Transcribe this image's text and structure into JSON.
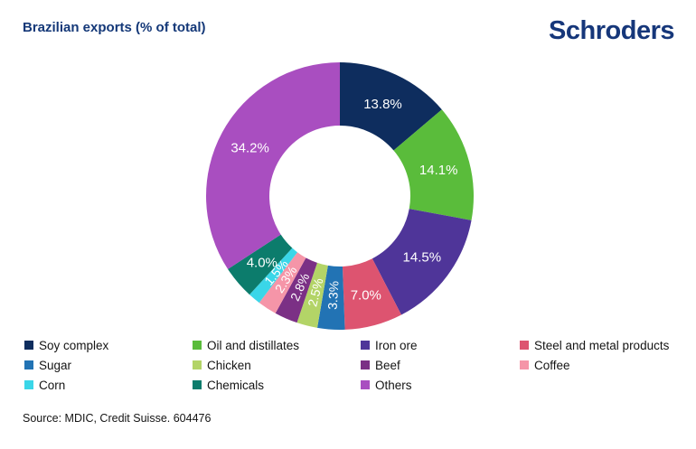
{
  "header": {
    "title": "Brazilian exports (% of total)",
    "logo_text": "Schroders"
  },
  "colors": {
    "title_navy": "#143878",
    "logo_navy": "#16377a",
    "label_text_on_slices": "#ffffff",
    "body_text": "#141414",
    "background": "#ffffff"
  },
  "chart_data": {
    "type": "pie",
    "subtype": "donut",
    "title": "Brazilian exports (% of total)",
    "units": "% of total",
    "start_angle_deg": 0,
    "direction": "clockwise",
    "inner_radius_ratio": 0.53,
    "legend_position": "bottom",
    "legend_columns": 4,
    "segments": [
      {
        "label": "Soy complex",
        "value": 13.8,
        "display": "13.8%",
        "color": "#0e2d5e"
      },
      {
        "label": "Oil and distillates",
        "value": 14.1,
        "display": "14.1%",
        "color": "#5abc3b"
      },
      {
        "label": "Iron ore",
        "value": 14.5,
        "display": "14.5%",
        "color": "#4f3599"
      },
      {
        "label": "Steel and metal products",
        "value": 7.0,
        "display": "7.0%",
        "color": "#dd5470"
      },
      {
        "label": "Sugar",
        "value": 3.3,
        "display": "3.3%",
        "color": "#2273b4"
      },
      {
        "label": "Chicken",
        "value": 2.5,
        "display": "2.5%",
        "color": "#b3d467"
      },
      {
        "label": "Beef",
        "value": 2.8,
        "display": "2.8%",
        "color": "#7b3085"
      },
      {
        "label": "Coffee",
        "value": 2.3,
        "display": "2.3%",
        "color": "#f595a8"
      },
      {
        "label": "Corn",
        "value": 1.5,
        "display": "1.5%",
        "color": "#3ad6e8"
      },
      {
        "label": "Chemicals",
        "value": 4.0,
        "display": "4.0%",
        "color": "#0c7c6c"
      },
      {
        "label": "Others",
        "value": 34.2,
        "display": "34.2%",
        "color": "#a94ec0"
      }
    ]
  },
  "footer": {
    "source": "Source: MDIC, Credit Suisse. 604476"
  }
}
